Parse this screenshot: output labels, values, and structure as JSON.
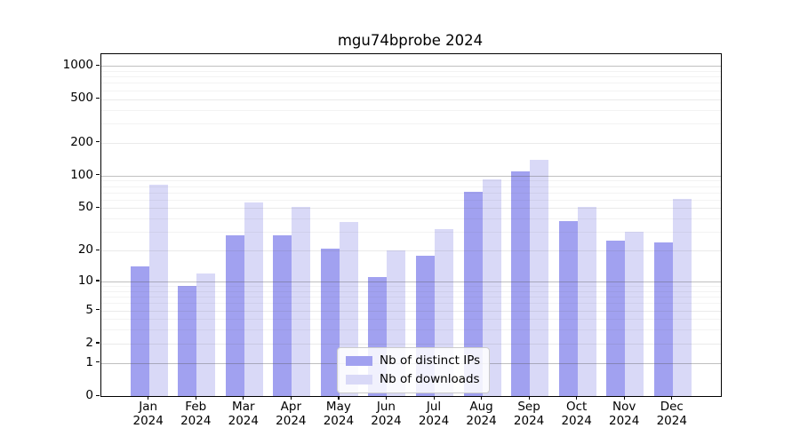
{
  "title": "mgu74bprobe 2024",
  "chart_data": {
    "type": "bar",
    "title": "mgu74bprobe 2024",
    "categories": [
      "Jan",
      "Feb",
      "Mar",
      "Apr",
      "May",
      "Jun",
      "Jul",
      "Aug",
      "Sep",
      "Oct",
      "Nov",
      "Dec"
    ],
    "year": "2024",
    "series": [
      {
        "name": "Nb of distinct IPs",
        "color": "#a1a1f0",
        "values": [
          14,
          9,
          28,
          28,
          21,
          11,
          18,
          71,
          110,
          38,
          25,
          24
        ]
      },
      {
        "name": "Nb of downloads",
        "color": "#d9d9f7",
        "values": [
          82,
          12,
          56,
          51,
          37,
          20,
          32,
          93,
          140,
          51,
          30,
          61
        ]
      }
    ],
    "y_scale": "log10(1+value)",
    "y_ticks": [
      0,
      1,
      2,
      5,
      10,
      20,
      50,
      100,
      200,
      500,
      1000
    ],
    "y_minor_ticks": [
      3,
      4,
      6,
      7,
      8,
      9,
      30,
      40,
      60,
      70,
      80,
      90,
      300,
      400,
      600,
      700,
      800,
      900
    ],
    "ylim": [
      0,
      1280
    ],
    "xlabel": "",
    "ylabel": "",
    "grid": true,
    "legend_position": "bottom-center"
  },
  "colors": {
    "bar_ips": "#a1a1f0",
    "bar_downloads": "#d9d9f7",
    "axis": "#000000",
    "grid_major": "#c9c9c9",
    "grid_mid": "#e8e8e8",
    "grid_minor": "#f3f3f3",
    "background": "#ffffff"
  }
}
